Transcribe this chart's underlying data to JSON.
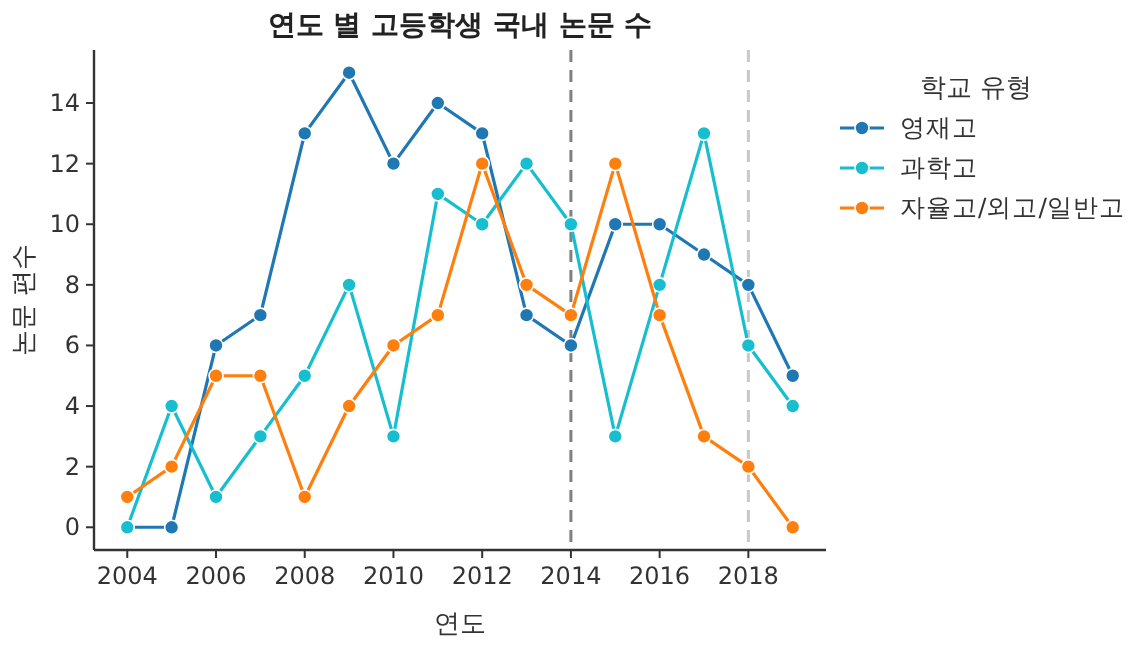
{
  "chart_data": {
    "type": "line",
    "title": "연도 별 고등학생 국내 논문 수",
    "xlabel": "연도",
    "ylabel": "논문 편수",
    "legend_title": "학교 유형",
    "legend": "right",
    "marker": "circle",
    "line_style": "solid",
    "x": [
      2004,
      2005,
      2006,
      2007,
      2008,
      2009,
      2010,
      2011,
      2012,
      2013,
      2014,
      2015,
      2016,
      2017,
      2018,
      2019
    ],
    "xlim": [
      2003.25,
      2019.75
    ],
    "xticks": [
      2004,
      2006,
      2008,
      2010,
      2012,
      2014,
      2016,
      2018
    ],
    "ylim": [
      -0.75,
      15.75
    ],
    "yticks": [
      0,
      2,
      4,
      6,
      8,
      10,
      12,
      14
    ],
    "series": [
      {
        "name": "영재고",
        "color": "#1f77b4",
        "values": [
          0,
          0,
          6,
          7,
          13,
          15,
          12,
          14,
          13,
          7,
          6,
          10,
          10,
          9,
          8,
          5
        ]
      },
      {
        "name": "과학고",
        "color": "#17becf",
        "values": [
          0,
          4,
          1,
          3,
          5,
          8,
          3,
          11,
          10,
          12,
          10,
          3,
          8,
          13,
          6,
          4
        ]
      },
      {
        "name": "자율고/외고/일반고",
        "color": "#ff7f0e",
        "values": [
          1,
          2,
          5,
          5,
          1,
          4,
          6,
          7,
          12,
          8,
          7,
          12,
          7,
          3,
          2,
          0
        ]
      }
    ],
    "ref_lines": [
      {
        "axis": "x",
        "value": 2014,
        "color": "#808080",
        "line_style": "dashed"
      },
      {
        "axis": "x",
        "value": 2018,
        "color": "#c8c8c8",
        "line_style": "dashed"
      }
    ]
  }
}
